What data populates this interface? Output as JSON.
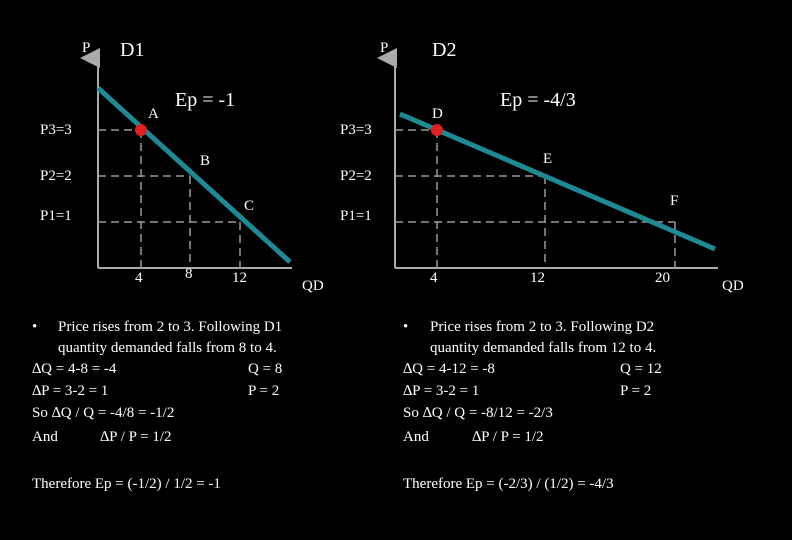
{
  "left": {
    "axis_p": "P",
    "title": "D1",
    "elasticity": "Ep = -1",
    "points": [
      "A",
      "B",
      "C"
    ],
    "price_labels": [
      "P3=3",
      "P2=2",
      "P1=1"
    ],
    "quantity_labels": [
      "4",
      "8",
      "12"
    ],
    "axis_q": "QD",
    "notes": [
      "Price rises from 2 to 3. Following D1",
      "quantity demanded falls from 8 to 4.",
      "∆Q = 4-8 = -4",
      "Q = 8",
      "∆P = 3-2 = 1",
      "P = 2",
      "So  ∆Q / Q = -4/8 = -1/2",
      "And",
      "∆P / P =  1/2",
      "Therefore Ep = (-1/2) / 1/2 = -1"
    ]
  },
  "right": {
    "axis_p": "P",
    "title": "D2",
    "elasticity": "Ep = -4/3",
    "points": [
      "D",
      "E",
      "F"
    ],
    "price_labels": [
      "P3=3",
      "P2=2",
      "P1=1"
    ],
    "quantity_labels": [
      "4",
      "12",
      "20"
    ],
    "axis_q": "QD",
    "notes": [
      "Price rises from 2 to 3. Following D2",
      "quantity demanded falls from 12 to 4.",
      "∆Q = 4-12 = -8",
      "Q = 12",
      "∆P = 3-2 = 1",
      "P = 2",
      "So  ∆Q / Q = -8/12 = -2/3",
      "And",
      "∆P / P =  1/2",
      "Therefore Ep = (-2/3) / (1/2) = -4/3"
    ]
  }
}
